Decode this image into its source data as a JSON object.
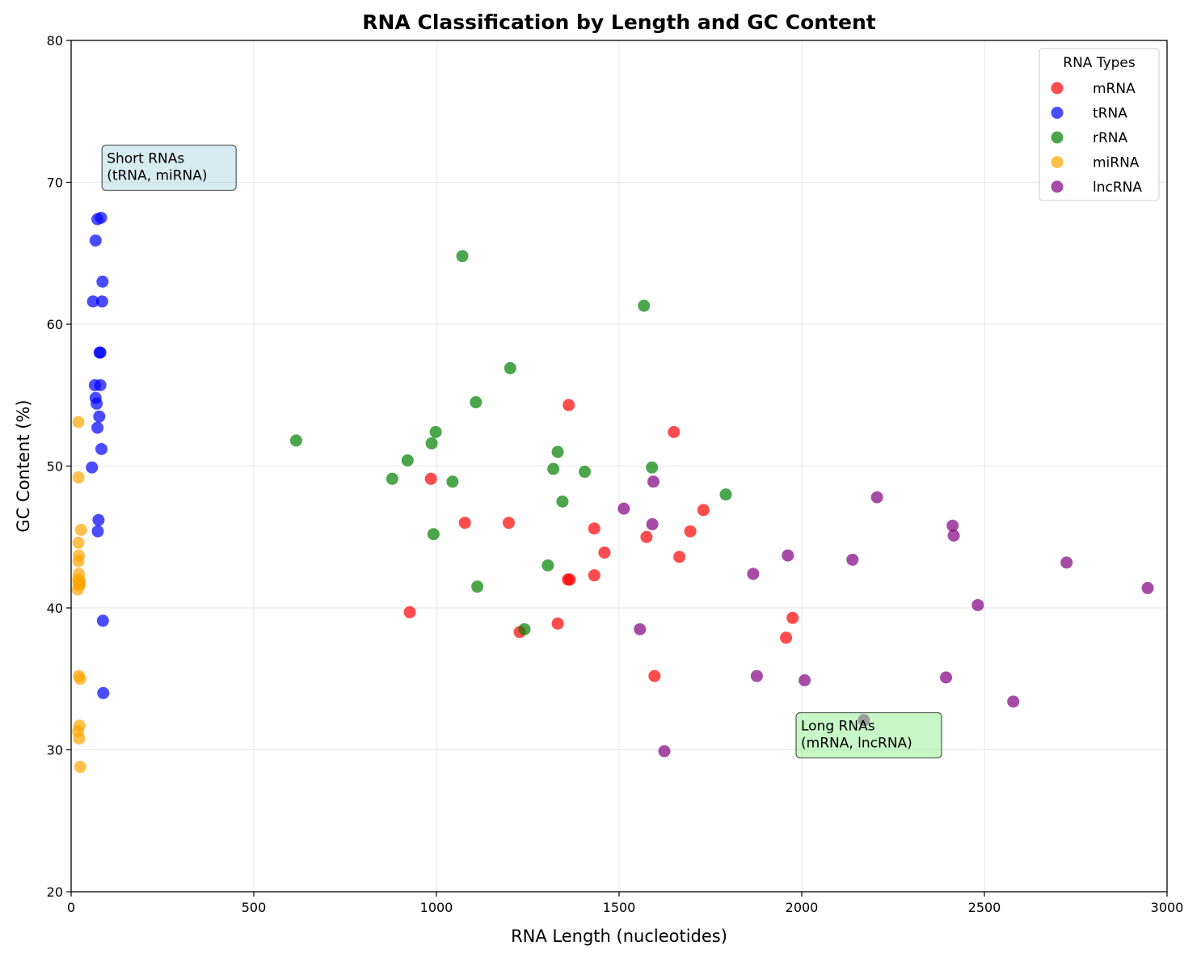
{
  "chart_data": {
    "type": "scatter",
    "title": "RNA Classification by Length and GC Content",
    "xlabel": "RNA Length (nucleotides)",
    "ylabel": "GC Content (%)",
    "xlim": [
      0,
      3000
    ],
    "ylim": [
      20,
      80
    ],
    "xticks": [
      0,
      500,
      1000,
      1500,
      2000,
      2500,
      3000
    ],
    "yticks": [
      20,
      30,
      40,
      50,
      60,
      70,
      80
    ],
    "grid": true,
    "legend": {
      "title": "RNA Types",
      "placement": "top-right"
    },
    "series": [
      {
        "name": "mRNA",
        "color": "#ff0000",
        "points": [
          [
            927,
            39.7
          ],
          [
            985,
            49.1
          ],
          [
            1078,
            46.0
          ],
          [
            1198,
            46.0
          ],
          [
            1228,
            38.3
          ],
          [
            1332,
            38.9
          ],
          [
            1362,
            54.3
          ],
          [
            1360,
            42.0
          ],
          [
            1365,
            42.0
          ],
          [
            1432,
            45.6
          ],
          [
            1432,
            42.3
          ],
          [
            1460,
            43.9
          ],
          [
            1575,
            45.0
          ],
          [
            1597,
            35.2
          ],
          [
            1650,
            52.4
          ],
          [
            1665,
            43.6
          ],
          [
            1695,
            45.4
          ],
          [
            1731,
            46.9
          ],
          [
            1957,
            37.9
          ],
          [
            1975,
            39.3
          ]
        ]
      },
      {
        "name": "tRNA",
        "color": "#0000ff",
        "points": [
          [
            57,
            49.9
          ],
          [
            60,
            61.6
          ],
          [
            65,
            55.7
          ],
          [
            67,
            54.8
          ],
          [
            67,
            65.9
          ],
          [
            70,
            54.4
          ],
          [
            72,
            67.4
          ],
          [
            72,
            52.7
          ],
          [
            73,
            45.4
          ],
          [
            75,
            46.2
          ],
          [
            77,
            53.5
          ],
          [
            78,
            58.0
          ],
          [
            80,
            58.0
          ],
          [
            80,
            55.7
          ],
          [
            82,
            67.5
          ],
          [
            83,
            51.2
          ],
          [
            85,
            61.6
          ],
          [
            86,
            63.0
          ],
          [
            87,
            39.1
          ],
          [
            88,
            34.0
          ]
        ]
      },
      {
        "name": "rRNA",
        "color": "#008000",
        "points": [
          [
            616,
            51.8
          ],
          [
            879,
            49.1
          ],
          [
            921,
            50.4
          ],
          [
            987,
            51.6
          ],
          [
            992,
            45.2
          ],
          [
            998,
            52.4
          ],
          [
            1044,
            48.9
          ],
          [
            1071,
            64.8
          ],
          [
            1108,
            54.5
          ],
          [
            1112,
            41.5
          ],
          [
            1202,
            56.9
          ],
          [
            1241,
            38.5
          ],
          [
            1305,
            43.0
          ],
          [
            1320,
            49.8
          ],
          [
            1332,
            51.0
          ],
          [
            1345,
            47.5
          ],
          [
            1406,
            49.6
          ],
          [
            1568,
            61.3
          ],
          [
            1590,
            49.9
          ],
          [
            1792,
            48.0
          ]
        ]
      },
      {
        "name": "miRNA",
        "color": "#ffa500",
        "points": [
          [
            18,
            41.3
          ],
          [
            19,
            42.0
          ],
          [
            19,
            31.3
          ],
          [
            20,
            41.7
          ],
          [
            20,
            43.3
          ],
          [
            20,
            44.6
          ],
          [
            20,
            53.1
          ],
          [
            20,
            49.2
          ],
          [
            21,
            42.4
          ],
          [
            21,
            43.7
          ],
          [
            21,
            35.2
          ],
          [
            22,
            30.8
          ],
          [
            22,
            41.8
          ],
          [
            23,
            41.6
          ],
          [
            23,
            31.7
          ],
          [
            24,
            41.9
          ],
          [
            24,
            41.7
          ],
          [
            25,
            35.0
          ],
          [
            25,
            28.8
          ],
          [
            27,
            45.5
          ]
        ]
      },
      {
        "name": "lncRNA",
        "color": "#800080",
        "points": [
          [
            1513,
            47.0
          ],
          [
            1557,
            38.5
          ],
          [
            1591,
            45.9
          ],
          [
            1594,
            48.9
          ],
          [
            1624,
            29.9
          ],
          [
            1867,
            42.4
          ],
          [
            1877,
            35.2
          ],
          [
            1962,
            43.7
          ],
          [
            2008,
            34.9
          ],
          [
            2139,
            43.4
          ],
          [
            2170,
            32.1
          ],
          [
            2206,
            47.8
          ],
          [
            2395,
            35.1
          ],
          [
            2413,
            45.8
          ],
          [
            2416,
            45.1
          ],
          [
            2482,
            40.2
          ],
          [
            2579,
            33.4
          ],
          [
            2725,
            43.2
          ],
          [
            2947,
            41.4
          ]
        ]
      }
    ],
    "annotations": [
      {
        "text_lines": [
          "Short RNAs",
          "(tRNA, miRNA)"
        ],
        "x": 100,
        "y": 70,
        "box_color": "#add8e6"
      },
      {
        "text_lines": [
          "Long RNAs",
          "(mRNA, lncRNA)"
        ],
        "x": 2000,
        "y": 30,
        "box_color": "#90ee90"
      }
    ]
  }
}
